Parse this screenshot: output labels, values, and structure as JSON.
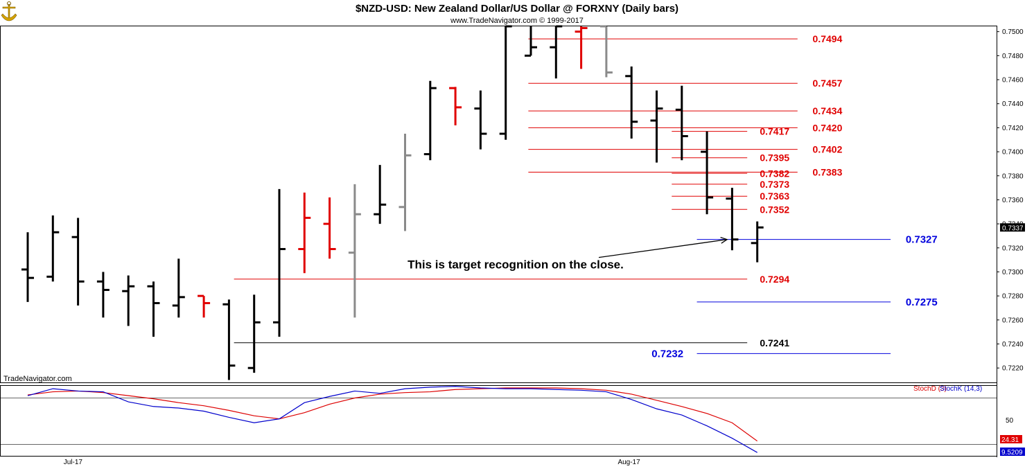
{
  "header": {
    "title": "$NZD-USD:  New Zealand Dollar/US Dollar @ FORXNY  (Daily bars)",
    "subtitle": "www.TradeNavigator.com © 1999-2017",
    "watermark": "TradeNavigator.com"
  },
  "colors": {
    "up_bar": "#000000",
    "down_bar": "#e00000",
    "neutral_bar": "#8a8a8a",
    "red_level": "#e00000",
    "blue_level": "#0000dd",
    "stoch_d": "#dd0000",
    "stoch_k": "#0000cc"
  },
  "chart_data": {
    "type": "ohlc",
    "ylim": [
      0.7208,
      0.7505
    ],
    "yticks": [
      "0.7500",
      "0.7480",
      "0.7460",
      "0.7440",
      "0.7420",
      "0.7400",
      "0.7380",
      "0.7360",
      "0.7340",
      "0.7320",
      "0.7300",
      "0.7280",
      "0.7260",
      "0.7240",
      "0.7220"
    ],
    "x_labels": [
      {
        "label": "Jul-17",
        "bar": 1.8
      },
      {
        "label": "Aug-17",
        "bar": 23.9
      }
    ],
    "last_price": "0.7337",
    "bars": [
      {
        "o": 0.7302,
        "h": 0.7333,
        "l": 0.7275,
        "c": 0.7295,
        "color": "black"
      },
      {
        "o": 0.7296,
        "h": 0.7347,
        "l": 0.7292,
        "c": 0.7333,
        "color": "black"
      },
      {
        "o": 0.7329,
        "h": 0.7345,
        "l": 0.7272,
        "c": 0.7292,
        "color": "black"
      },
      {
        "o": 0.7292,
        "h": 0.73,
        "l": 0.7262,
        "c": 0.7285,
        "color": "black"
      },
      {
        "o": 0.7284,
        "h": 0.7297,
        "l": 0.7255,
        "c": 0.7288,
        "color": "black"
      },
      {
        "o": 0.7288,
        "h": 0.7292,
        "l": 0.7246,
        "c": 0.7274,
        "color": "black"
      },
      {
        "o": 0.7272,
        "h": 0.7311,
        "l": 0.7262,
        "c": 0.7279,
        "color": "black"
      },
      {
        "o": 0.728,
        "h": 0.728,
        "l": 0.7262,
        "c": 0.7274,
        "color": "red"
      },
      {
        "o": 0.7273,
        "h": 0.7277,
        "l": 0.721,
        "c": 0.7222,
        "color": "black"
      },
      {
        "o": 0.722,
        "h": 0.7281,
        "l": 0.7216,
        "c": 0.7258,
        "color": "black"
      },
      {
        "o": 0.7258,
        "h": 0.7369,
        "l": 0.7246,
        "c": 0.7319,
        "color": "black"
      },
      {
        "o": 0.7319,
        "h": 0.7366,
        "l": 0.7299,
        "c": 0.7345,
        "color": "red"
      },
      {
        "o": 0.734,
        "h": 0.7362,
        "l": 0.7311,
        "c": 0.7319,
        "color": "red"
      },
      {
        "o": 0.7316,
        "h": 0.7373,
        "l": 0.7262,
        "c": 0.7348,
        "color": "gray"
      },
      {
        "o": 0.7348,
        "h": 0.7389,
        "l": 0.734,
        "c": 0.7356,
        "color": "black"
      },
      {
        "o": 0.7354,
        "h": 0.7415,
        "l": 0.7334,
        "c": 0.7397,
        "color": "gray"
      },
      {
        "o": 0.7398,
        "h": 0.7459,
        "l": 0.7393,
        "c": 0.7453,
        "color": "black"
      },
      {
        "o": 0.7453,
        "h": 0.7454,
        "l": 0.7422,
        "c": 0.7437,
        "color": "red"
      },
      {
        "o": 0.7436,
        "h": 0.7451,
        "l": 0.7402,
        "c": 0.7415,
        "color": "black"
      },
      {
        "o": 0.7415,
        "h": 0.7505,
        "l": 0.741,
        "c": 0.7505,
        "color": "black"
      },
      {
        "o": 0.748,
        "h": 0.7505,
        "l": 0.748,
        "c": 0.7487,
        "color": "black"
      },
      {
        "o": 0.7487,
        "h": 0.7505,
        "l": 0.7461,
        "c": 0.7505,
        "color": "black"
      },
      {
        "o": 0.75,
        "h": 0.7505,
        "l": 0.7469,
        "c": 0.7503,
        "color": "red"
      },
      {
        "o": 0.7505,
        "h": 0.7505,
        "l": 0.7462,
        "c": 0.7466,
        "color": "gray"
      },
      {
        "o": 0.7463,
        "h": 0.7471,
        "l": 0.7411,
        "c": 0.7425,
        "color": "black"
      },
      {
        "o": 0.7426,
        "h": 0.7451,
        "l": 0.7391,
        "c": 0.7436,
        "color": "black"
      },
      {
        "o": 0.7435,
        "h": 0.7455,
        "l": 0.7393,
        "c": 0.7413,
        "color": "black"
      },
      {
        "o": 0.74,
        "h": 0.7417,
        "l": 0.7348,
        "c": 0.7362,
        "color": "black"
      },
      {
        "o": 0.7361,
        "h": 0.737,
        "l": 0.7318,
        "c": 0.7327,
        "color": "black"
      },
      {
        "o": 0.7324,
        "h": 0.7342,
        "l": 0.7308,
        "c": 0.7337,
        "color": "black"
      }
    ],
    "levels": [
      {
        "value": 0.7494,
        "label": "0.7494",
        "color": "red",
        "x1": 19.9,
        "x2": 30.6,
        "label_at": 31.2,
        "text_color": "red"
      },
      {
        "value": 0.7457,
        "label": "0.7457",
        "color": "red",
        "x1": 19.9,
        "x2": 30.6,
        "label_at": 31.2,
        "text_color": "red"
      },
      {
        "value": 0.7434,
        "label": "0.7434",
        "color": "red",
        "x1": 19.9,
        "x2": 30.6,
        "label_at": 31.2,
        "text_color": "red"
      },
      {
        "value": 0.742,
        "label": "0.7420",
        "color": "red",
        "x1": 19.9,
        "x2": 30.6,
        "label_at": 31.2,
        "text_color": "red"
      },
      {
        "value": 0.7402,
        "label": "0.7402",
        "color": "red",
        "x1": 19.9,
        "x2": 30.6,
        "label_at": 31.2,
        "text_color": "red"
      },
      {
        "value": 0.7383,
        "label": "0.7383",
        "color": "red",
        "x1": 19.9,
        "x2": 30.6,
        "label_at": 31.2,
        "text_color": "red"
      },
      {
        "value": 0.7417,
        "label": "0.7417",
        "color": "red",
        "x1": 25.6,
        "x2": 28.6,
        "label_at": 29.1,
        "text_color": "red"
      },
      {
        "value": 0.7395,
        "label": "0.7395",
        "color": "red",
        "x1": 25.6,
        "x2": 28.6,
        "label_at": 29.1,
        "text_color": "red"
      },
      {
        "value": 0.7382,
        "label": "0.7382",
        "color": "red",
        "x1": 25.6,
        "x2": 28.6,
        "label_at": 29.1,
        "text_color": "red"
      },
      {
        "value": 0.7373,
        "label": "0.7373",
        "color": "red",
        "x1": 25.6,
        "x2": 28.6,
        "label_at": 29.1,
        "text_color": "red"
      },
      {
        "value": 0.7363,
        "label": "0.7363",
        "color": "red",
        "x1": 25.6,
        "x2": 28.6,
        "label_at": 29.1,
        "text_color": "red"
      },
      {
        "value": 0.7352,
        "label": "0.7352",
        "color": "red",
        "x1": 25.6,
        "x2": 28.6,
        "label_at": 29.1,
        "text_color": "red"
      },
      {
        "value": 0.7294,
        "label": "0.7294",
        "color": "red",
        "x1": 8.2,
        "x2": 28.6,
        "label_at": 29.1,
        "text_color": "red"
      },
      {
        "value": 0.7241,
        "label": "0.7241",
        "color": "black",
        "x1": 8.2,
        "x2": 28.6,
        "label_at": 29.1,
        "text_color": "black"
      },
      {
        "value": 0.7327,
        "label": "0.7327",
        "color": "blue",
        "x1": 26.6,
        "x2": 34.3,
        "label_at": 34.9,
        "text_color": "blue"
      },
      {
        "value": 0.7275,
        "label": "0.7275",
        "color": "blue",
        "x1": 26.6,
        "x2": 34.3,
        "label_at": 34.9,
        "text_color": "blue"
      },
      {
        "value": 0.7232,
        "label": "0.7232",
        "color": "blue",
        "x1": 26.6,
        "x2": 34.3,
        "label_at": 24.8,
        "text_color": "blue"
      }
    ],
    "annotation": {
      "text": "This is target recognition on the close.",
      "text_bar": 15.1,
      "text_value": 0.7303,
      "arrow_from_bar": 22.7,
      "arrow_from_value": 0.7312,
      "arrow_to_bar": 27.8,
      "arrow_to_value": 0.7327
    },
    "stochastic": {
      "ylim": [
        0,
        100
      ],
      "ytick": "50",
      "stochD_label": "StochD (3)",
      "stochK_label": "StochK (14,3)",
      "stochD_last": "24.31",
      "stochK_last": "9.5209",
      "stochD": [
        84,
        88,
        89,
        87,
        83,
        79,
        74,
        70,
        64,
        57,
        53,
        61,
        72,
        80,
        85,
        87,
        88,
        91,
        92,
        93,
        93,
        93,
        92,
        90,
        85,
        77,
        69,
        60,
        48,
        24.31
      ],
      "stochK": [
        83,
        92,
        89,
        88,
        75,
        69,
        67,
        63,
        55,
        48,
        53,
        74,
        82,
        89,
        86,
        92,
        94,
        95,
        93,
        92,
        92,
        91,
        90,
        88,
        78,
        66,
        58,
        44,
        28,
        9.52
      ]
    }
  }
}
